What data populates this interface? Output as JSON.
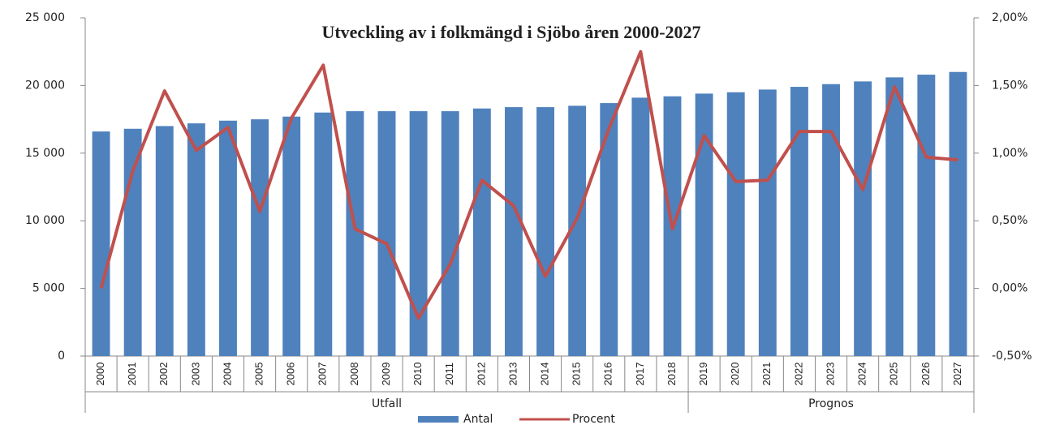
{
  "chart_data": {
    "type": "bar_line",
    "title": "Utveckling av i folkmängd i Sjöbo åren 2000-2027",
    "categories": [
      "2000",
      "2001",
      "2002",
      "2003",
      "2004",
      "2005",
      "2006",
      "2007",
      "2008",
      "2009",
      "2010",
      "2011",
      "2012",
      "2013",
      "2014",
      "2015",
      "2016",
      "2017",
      "2018",
      "2019",
      "2020",
      "2021",
      "2022",
      "2023",
      "2024",
      "2025",
      "2026",
      "2027"
    ],
    "groups": [
      {
        "label": "Utfall",
        "first": "2000",
        "last": "2018"
      },
      {
        "label": "Prognos",
        "first": "2019",
        "last": "2027"
      }
    ],
    "series": [
      {
        "name": "Antal",
        "color": "#4f81bd",
        "values": [
          16600,
          16800,
          17000,
          17200,
          17400,
          17500,
          17700,
          18000,
          18100,
          18100,
          18100,
          18100,
          18300,
          18400,
          18400,
          18500,
          18700,
          19100,
          19200,
          19400,
          19500,
          19700,
          19900,
          20100,
          20300,
          20600,
          20800,
          21000
        ]
      },
      {
        "name": "Procent",
        "color": "#c0504d",
        "axis": "y2",
        "values": [
          0.0,
          0.87,
          1.46,
          1.02,
          1.19,
          0.57,
          1.26,
          1.65,
          0.44,
          0.33,
          -0.22,
          0.18,
          0.8,
          0.61,
          0.09,
          0.52,
          1.18,
          1.75,
          0.44,
          1.13,
          0.79,
          0.8,
          1.16,
          1.16,
          0.73,
          1.49,
          0.97,
          0.95
        ]
      }
    ],
    "ylim": [
      0,
      25000
    ],
    "yticks": [
      0,
      {
        "value": 5000,
        "label": "5 000"
      },
      {
        "value": 10000,
        "label": "10 000"
      },
      {
        "value": 15000,
        "label": "15 000"
      },
      {
        "value": 20000,
        "label": "20 000"
      },
      {
        "value": 25000,
        "label": "25 000"
      }
    ],
    "y2lim": [
      -0.5,
      2.0
    ],
    "y2ticks": [
      {
        "value": -0.5,
        "label": "-0,50%"
      },
      {
        "value": 0,
        "label": "0,00%"
      },
      {
        "value": 0.5,
        "label": "0,50%"
      },
      {
        "value": 1.0,
        "label": "1,00%"
      },
      {
        "value": 1.5,
        "label": "1,50%"
      },
      {
        "value": 2.0,
        "label": "2,00%"
      }
    ],
    "legend": "bottom"
  }
}
